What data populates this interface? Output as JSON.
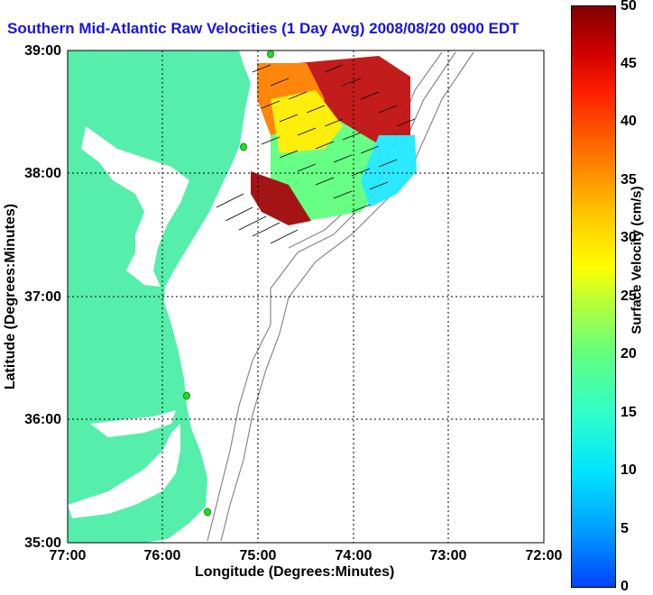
{
  "title": "Southern Mid-Atlantic Raw Velocities (1 Day Avg) 2008/08/20 0900 EDT",
  "axes": {
    "xlabel": "Longitude (Degrees:Minutes)",
    "ylabel": "Latitude (Degrees:Minutes)",
    "xticks": [
      "77:00",
      "76:00",
      "75:00",
      "74:00",
      "73:00",
      "72:00"
    ],
    "yticks": [
      "39:00",
      "38:00",
      "37:00",
      "36:00",
      "35:00"
    ]
  },
  "colorbar": {
    "label": "Surface Velocity (cm/s)",
    "ticks": [
      "50",
      "45",
      "40",
      "35",
      "30",
      "25",
      "20",
      "15",
      "10",
      "5",
      "0"
    ],
    "range": [
      0,
      50
    ]
  },
  "colors": {
    "land": "#55eeaa",
    "title": "#1a14e0",
    "grid": "#000000",
    "bathymetry": "#888888",
    "station": "#22dd22"
  }
}
